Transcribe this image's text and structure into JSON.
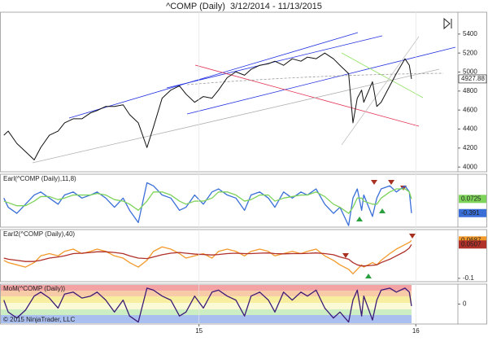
{
  "chart_data": [
    {
      "type": "line",
      "title": "^COMP (Daily)  3/12/2014 - 11/13/2015",
      "color": "#111111",
      "x": [
        2014.1,
        2014.12,
        2014.16,
        2014.2,
        2014.24,
        2014.27,
        2014.31,
        2014.35,
        2014.38,
        2014.42,
        2014.46,
        2014.5,
        2014.53,
        2014.57,
        2014.61,
        2014.65,
        2014.68,
        2014.72,
        2014.76,
        2014.79,
        2014.83,
        2014.87,
        2014.91,
        2014.94,
        2014.98,
        2015.02,
        2015.06,
        2015.09,
        2015.13,
        2015.17,
        2015.21,
        2015.24,
        2015.28,
        2015.32,
        2015.35,
        2015.39,
        2015.43,
        2015.47,
        2015.5,
        2015.54,
        2015.58,
        2015.62,
        2015.65,
        2015.69,
        2015.71,
        2015.73,
        2015.75,
        2015.76,
        2015.8,
        2015.82,
        2015.84,
        2015.88,
        2015.91,
        2015.95,
        2015.97,
        2015.98
      ],
      "values": [
        4335,
        4378,
        4248,
        4162,
        4075,
        4205,
        4335,
        4378,
        4465,
        4508,
        4508,
        4570,
        4595,
        4638,
        4638,
        4655,
        4552,
        4465,
        4205,
        4422,
        4725,
        4810,
        4855,
        4768,
        4682,
        4742,
        4725,
        4810,
        4941,
        5002,
        4967,
        5028,
        5071,
        5088,
        5114,
        5071,
        5140,
        5114,
        5157,
        5140,
        5200,
        5140,
        5071,
        4984,
        4465,
        4725,
        4810,
        4682,
        4898,
        4638,
        4682,
        4855,
        4984,
        5140,
        5071,
        4927.88
      ],
      "last_value_label": true,
      "xlim": [
        2014.086,
        2016.194
      ],
      "ylim": [
        3950,
        5630
      ],
      "yticks": [
        4000,
        4200,
        4400,
        4600,
        4800,
        5000,
        5200,
        5400
      ]
    },
    {
      "type": "line",
      "title": "Earl(^COMP (Daily),11,8)",
      "x": [
        2014.1,
        2014.12,
        2014.16,
        2014.2,
        2014.24,
        2014.27,
        2014.31,
        2014.35,
        2014.38,
        2014.42,
        2014.46,
        2014.5,
        2014.53,
        2014.57,
        2014.61,
        2014.65,
        2014.68,
        2014.72,
        2014.76,
        2014.79,
        2014.83,
        2014.87,
        2014.91,
        2014.94,
        2014.98,
        2015.02,
        2015.06,
        2015.09,
        2015.13,
        2015.17,
        2015.21,
        2015.24,
        2015.28,
        2015.32,
        2015.35,
        2015.39,
        2015.43,
        2015.47,
        2015.5,
        2015.54,
        2015.58,
        2015.62,
        2015.65,
        2015.69,
        2015.71,
        2015.73,
        2015.75,
        2015.76,
        2015.8,
        2015.82,
        2015.84,
        2015.88,
        2015.91,
        2015.95,
        2015.97,
        2015.98
      ],
      "series": [
        {
          "color": "#3a6fd8",
          "values": [
            0.1,
            -0.2,
            -0.4,
            -0.1,
            0.2,
            0.3,
            0.1,
            -0.1,
            0.2,
            0.3,
            0.1,
            0.2,
            0.3,
            0.1,
            -0.2,
            0.1,
            -0.3,
            -0.7,
            0.6,
            0.5,
            0.2,
            0.1,
            -0.3,
            -0.2,
            0.2,
            -0.1,
            0.3,
            0.4,
            0.2,
            0.1,
            -0.3,
            0.2,
            0.3,
            0.1,
            -0.2,
            0.3,
            0.1,
            0.3,
            0.2,
            0.4,
            -0.1,
            -0.4,
            -0.2,
            -0.8,
            0.1,
            0.4,
            -0.3,
            0.2,
            -0.5,
            0.1,
            0.4,
            0.5,
            0.3,
            0.5,
            0.3,
            -0.391
          ]
        },
        {
          "color": "#7ed35a",
          "values": [
            0.0,
            -0.05,
            -0.15,
            -0.15,
            0.0,
            0.15,
            0.15,
            0.05,
            0.1,
            0.2,
            0.2,
            0.2,
            0.25,
            0.2,
            0.05,
            0.0,
            -0.1,
            -0.3,
            0.0,
            0.3,
            0.3,
            0.2,
            0.0,
            -0.1,
            0.0,
            0.0,
            0.1,
            0.3,
            0.3,
            0.2,
            0.0,
            0.05,
            0.2,
            0.2,
            0.0,
            0.1,
            0.15,
            0.2,
            0.2,
            0.3,
            0.15,
            -0.1,
            -0.2,
            -0.4,
            -0.2,
            0.1,
            0.1,
            0.0,
            -0.1,
            -0.1,
            0.1,
            0.3,
            0.4,
            0.4,
            0.3,
            0.0725
          ]
        }
      ],
      "last_value_label": true,
      "xlim": [
        2014.086,
        2016.194
      ],
      "ylim": [
        -0.85,
        0.88
      ]
    },
    {
      "type": "line",
      "title": "Earl2(^COMP (Daily),40)",
      "x": [
        2014.1,
        2014.12,
        2014.16,
        2014.2,
        2014.24,
        2014.27,
        2014.31,
        2014.35,
        2014.38,
        2014.42,
        2014.46,
        2014.5,
        2014.53,
        2014.57,
        2014.61,
        2014.65,
        2014.68,
        2014.72,
        2014.76,
        2014.79,
        2014.83,
        2014.87,
        2014.91,
        2014.94,
        2014.98,
        2015.02,
        2015.06,
        2015.09,
        2015.13,
        2015.17,
        2015.21,
        2015.24,
        2015.28,
        2015.32,
        2015.35,
        2015.39,
        2015.43,
        2015.47,
        2015.5,
        2015.54,
        2015.58,
        2015.62,
        2015.65,
        2015.69,
        2015.71,
        2015.73,
        2015.75,
        2015.76,
        2015.8,
        2015.82,
        2015.84,
        2015.88,
        2015.91,
        2015.95,
        2015.97,
        2015.98
      ],
      "series": [
        {
          "color": "#f39a2a",
          "values": [
            -0.02,
            -0.03,
            -0.04,
            -0.05,
            -0.03,
            0.0,
            0.01,
            0.0,
            0.02,
            0.03,
            0.01,
            0.02,
            0.03,
            0.02,
            0.0,
            -0.01,
            -0.03,
            -0.05,
            -0.02,
            0.02,
            0.04,
            0.03,
            0.01,
            -0.01,
            0.0,
            0.01,
            -0.01,
            0.02,
            0.03,
            0.02,
            0.0,
            0.02,
            0.03,
            0.02,
            0.0,
            0.01,
            0.02,
            0.01,
            0.02,
            0.03,
            0.0,
            -0.02,
            -0.04,
            -0.06,
            -0.08,
            -0.06,
            -0.04,
            -0.05,
            -0.03,
            -0.04,
            -0.02,
            0.01,
            0.03,
            0.05,
            0.06,
            0.0687
          ]
        },
        {
          "color": "#b0302a",
          "values": [
            -0.01,
            -0.015,
            -0.02,
            -0.025,
            -0.025,
            -0.02,
            -0.01,
            -0.005,
            0.0,
            0.01,
            0.012,
            0.015,
            0.018,
            0.018,
            0.015,
            0.01,
            0.0,
            -0.01,
            -0.012,
            -0.005,
            0.005,
            0.012,
            0.015,
            0.012,
            0.008,
            0.006,
            0.004,
            0.006,
            0.01,
            0.012,
            0.01,
            0.01,
            0.012,
            0.013,
            0.01,
            0.009,
            0.01,
            0.01,
            0.011,
            0.013,
            0.01,
            0.005,
            -0.005,
            -0.015,
            -0.03,
            -0.04,
            -0.045,
            -0.045,
            -0.042,
            -0.04,
            -0.03,
            -0.015,
            0.0,
            0.02,
            0.035,
            0.0507
          ]
        }
      ],
      "last_value_label": true,
      "xlim": [
        2014.086,
        2016.194
      ],
      "ylim": [
        -0.115,
        0.117
      ],
      "yticks": [
        -0.1
      ]
    },
    {
      "type": "line",
      "title": "MoM(^COMP (Daily))",
      "copyright": "© 2015 NinjaTrader, LLC",
      "x": [
        2014.1,
        2014.12,
        2014.16,
        2014.2,
        2014.24,
        2014.27,
        2014.31,
        2014.35,
        2014.38,
        2014.42,
        2014.46,
        2014.5,
        2014.53,
        2014.57,
        2014.61,
        2014.65,
        2014.68,
        2014.72,
        2014.76,
        2014.79,
        2014.83,
        2014.87,
        2014.91,
        2014.94,
        2014.98,
        2015.02,
        2015.06,
        2015.09,
        2015.13,
        2015.17,
        2015.21,
        2015.24,
        2015.28,
        2015.32,
        2015.35,
        2015.39,
        2015.43,
        2015.47,
        2015.5,
        2015.54,
        2015.58,
        2015.62,
        2015.65,
        2015.69,
        2015.71,
        2015.73,
        2015.75,
        2015.76,
        2015.8,
        2015.82,
        2015.84,
        2015.88,
        2015.91,
        2015.95,
        2015.97,
        2015.98
      ],
      "series": [
        {
          "color": "#3c1a78",
          "values": [
            20,
            -40,
            -70,
            -30,
            40,
            60,
            30,
            -20,
            50,
            60,
            30,
            40,
            60,
            20,
            -40,
            20,
            -60,
            -90,
            80,
            70,
            40,
            20,
            -60,
            -40,
            40,
            -20,
            60,
            70,
            40,
            20,
            -60,
            40,
            60,
            20,
            -40,
            60,
            20,
            60,
            40,
            70,
            -20,
            -70,
            -40,
            -90,
            20,
            70,
            -60,
            40,
            -80,
            20,
            70,
            80,
            60,
            80,
            60,
            -10
          ]
        }
      ],
      "xlim": [
        2014.086,
        2016.194
      ],
      "ylim": [
        -100,
        100
      ],
      "yticks": [
        0
      ],
      "xticks": [
        {
          "value": 2015,
          "label": "15"
        },
        {
          "value": 2016,
          "label": "16"
        }
      ]
    }
  ]
}
